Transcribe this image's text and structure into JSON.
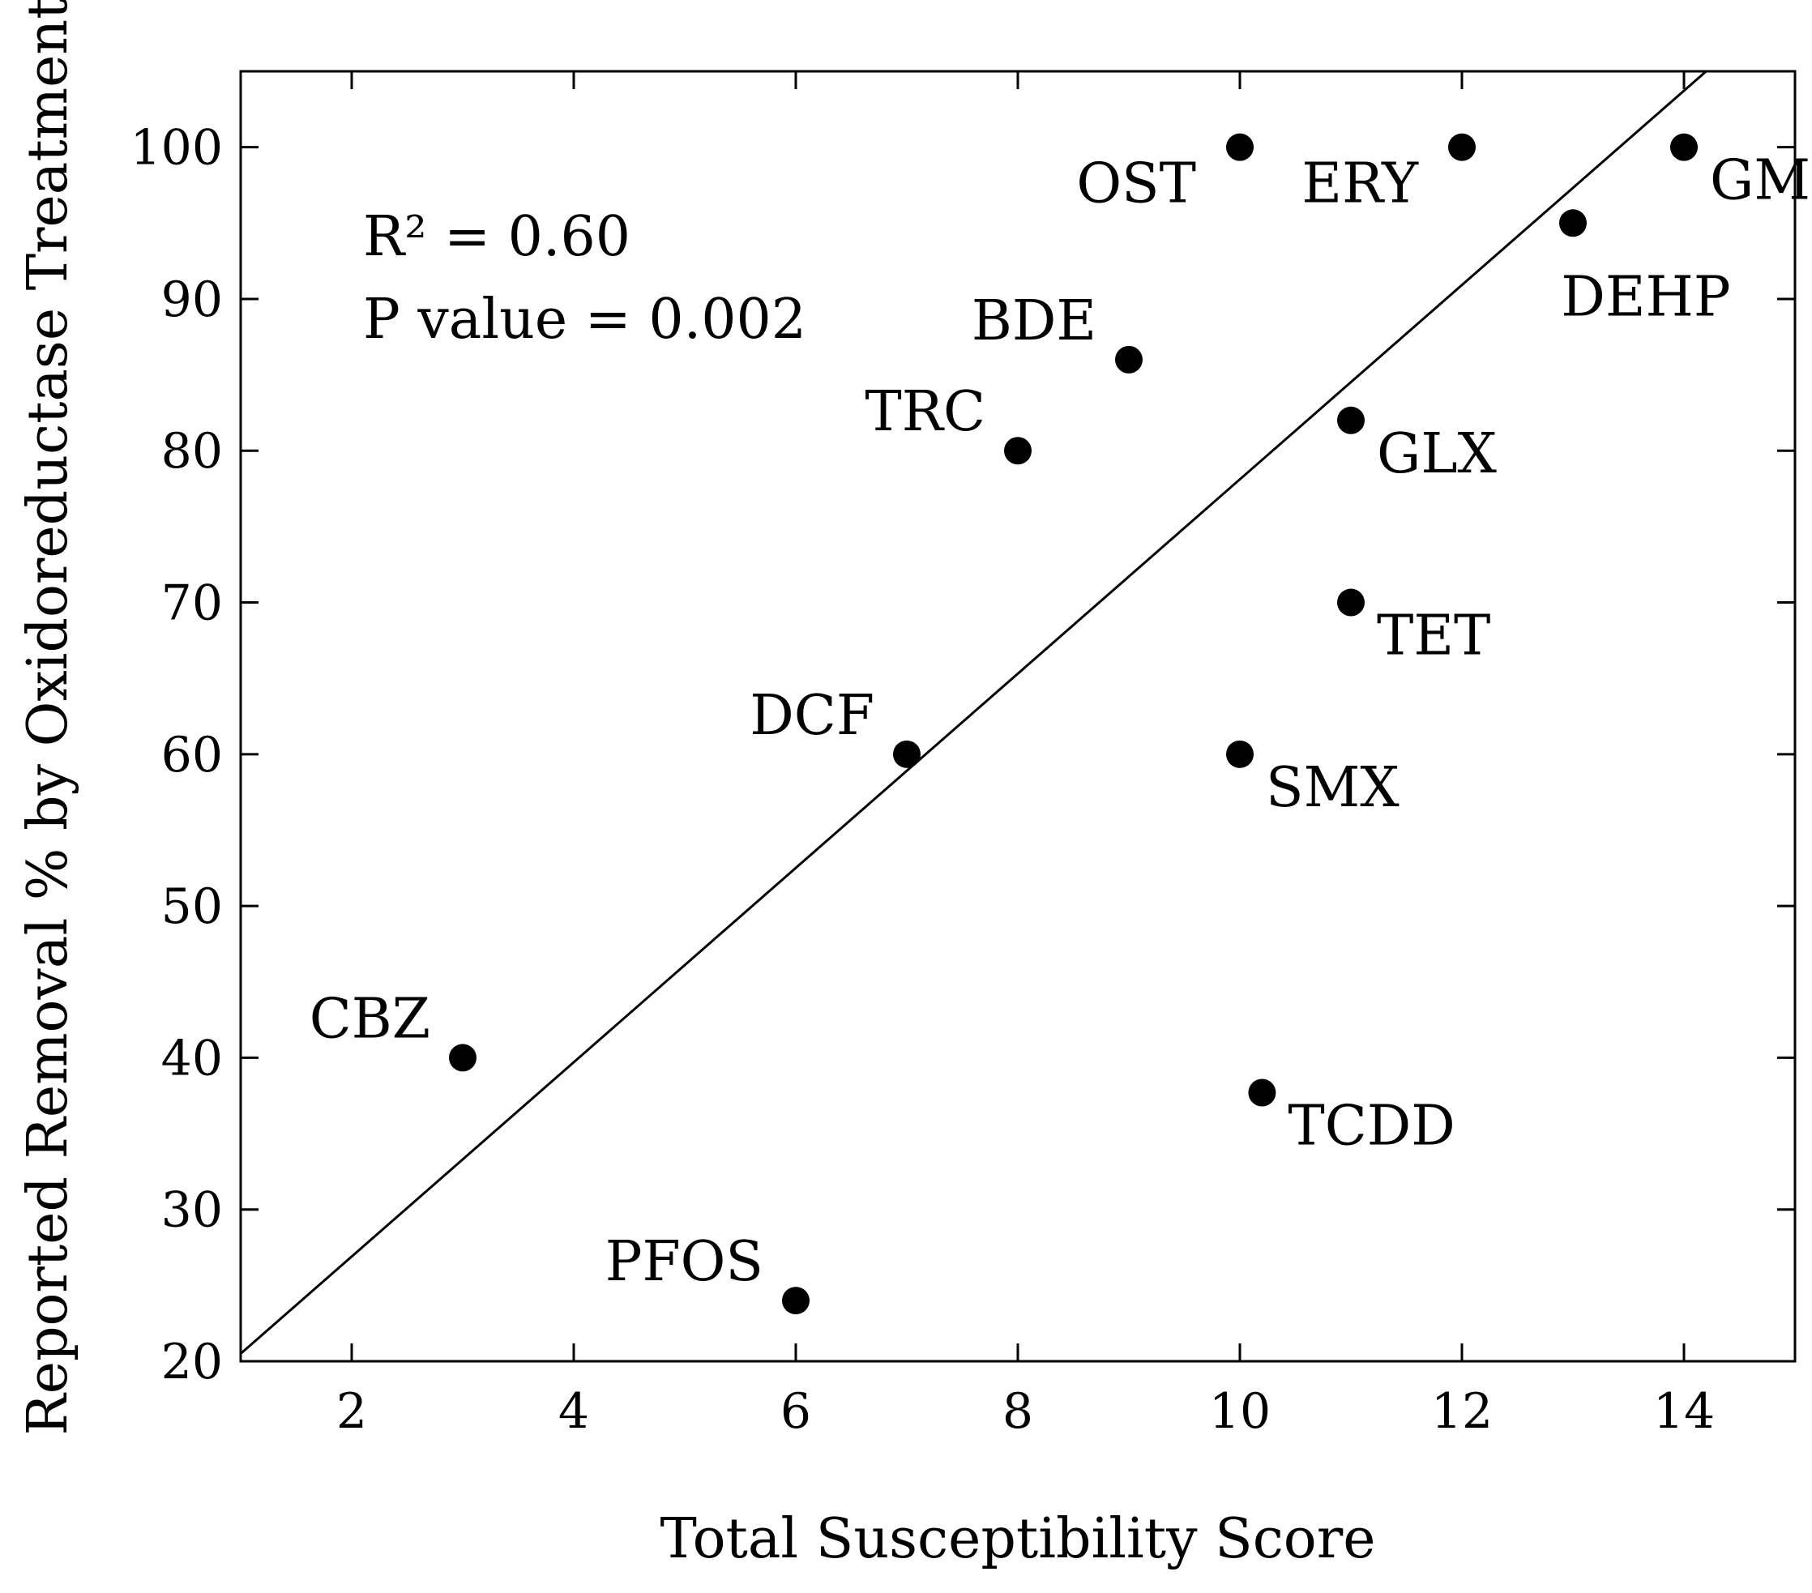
{
  "chart_data": {
    "type": "scatter",
    "title": "",
    "xlabel": "Total Susceptibility Score",
    "ylabel": "Reported Removal % by Oxidoreductase Treatment",
    "xlim": [
      1,
      15
    ],
    "ylim": [
      20,
      105
    ],
    "xticks": [
      2,
      4,
      6,
      8,
      10,
      12,
      14
    ],
    "yticks": [
      20,
      30,
      40,
      50,
      60,
      70,
      80,
      90,
      100
    ],
    "grid": false,
    "points": [
      {
        "label": "OST",
        "x": 10,
        "y": 100,
        "label_pos": "bottom-left"
      },
      {
        "label": "ERY",
        "x": 12,
        "y": 100,
        "label_pos": "bottom-left"
      },
      {
        "label": "GMF",
        "x": 14,
        "y": 100,
        "label_pos": "bottom-right"
      },
      {
        "label": "DEHP",
        "x": 13,
        "y": 95,
        "label_pos": "bottom"
      },
      {
        "label": "BDE",
        "x": 9,
        "y": 86,
        "label_pos": "top-left"
      },
      {
        "label": "TRC",
        "x": 8,
        "y": 80,
        "label_pos": "top-left"
      },
      {
        "label": "GLX",
        "x": 11,
        "y": 82,
        "label_pos": "bottom-right"
      },
      {
        "label": "TET",
        "x": 11,
        "y": 70,
        "label_pos": "bottom-right"
      },
      {
        "label": "DCF",
        "x": 7,
        "y": 60,
        "label_pos": "top-left"
      },
      {
        "label": "SMX",
        "x": 10,
        "y": 60,
        "label_pos": "bottom-right"
      },
      {
        "label": "CBZ",
        "x": 3,
        "y": 40,
        "label_pos": "top-left"
      },
      {
        "label": "TCDD",
        "x": 10.2,
        "y": 37.7,
        "label_pos": "bottom-right"
      },
      {
        "label": "PFOS",
        "x": 6,
        "y": 24,
        "label_pos": "top-left"
      }
    ],
    "regression_line": {
      "x": [
        1,
        14.2
      ],
      "y": [
        20.5,
        105
      ]
    },
    "annotations": {
      "r_squared": "R² = 0.60",
      "p_value": "P value = 0.002"
    }
  }
}
